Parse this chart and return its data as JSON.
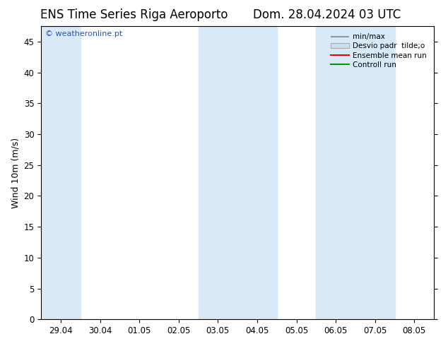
{
  "title_left": "ENS Time Series Riga Aeroporto",
  "title_right": "Dom. 28.04.2024 03 UTC",
  "ylabel": "Wind 10m (m/s)",
  "watermark": "© weatheronline.pt",
  "ylim": [
    0,
    47.5
  ],
  "yticks": [
    0,
    5,
    10,
    15,
    20,
    25,
    30,
    35,
    40,
    45
  ],
  "x_tick_labels": [
    "29.04",
    "30.04",
    "01.05",
    "02.05",
    "03.05",
    "04.05",
    "05.05",
    "06.05",
    "07.05",
    "08.05"
  ],
  "background_color": "#ffffff",
  "plot_bg_color": "#ffffff",
  "band_color": "#d8eaf7",
  "shade_indices": [
    0,
    4,
    5,
    7,
    8
  ],
  "legend_entries": [
    "min/max",
    "Desvio padr  tilde;o",
    "Ensemble mean run",
    "Controll run"
  ],
  "title_fontsize": 12,
  "tick_fontsize": 8.5,
  "ylabel_fontsize": 9,
  "watermark_color": "#2255bb",
  "watermark_fontsize": 8
}
